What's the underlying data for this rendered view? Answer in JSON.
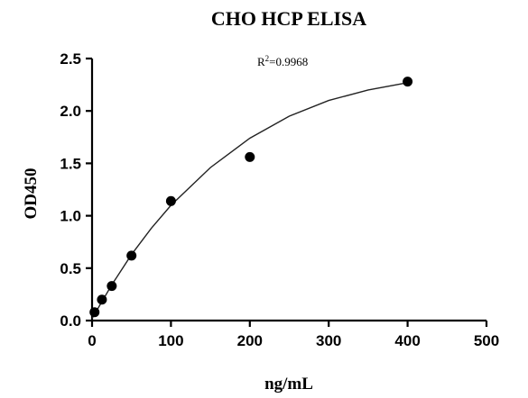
{
  "chart_data": {
    "type": "scatter",
    "title": "CHO HCP ELISA",
    "xlabel": "ng/mL",
    "ylabel": "OD450",
    "xlim": [
      0,
      500
    ],
    "ylim": [
      0,
      2.5
    ],
    "x_ticks": [
      "0",
      "100",
      "200",
      "300",
      "400",
      "500"
    ],
    "y_ticks": [
      "0.0",
      "0.5",
      "1.0",
      "1.5",
      "2.0",
      "2.5"
    ],
    "x_tick_values": [
      0,
      100,
      200,
      300,
      400,
      500
    ],
    "y_tick_values": [
      0,
      0.5,
      1.0,
      1.5,
      2.0,
      2.5
    ],
    "grid": false,
    "annotation": {
      "base": "R",
      "sup": "2",
      "rest": "=0.9968"
    },
    "series": [
      {
        "x": [
          3.125,
          12.5,
          25,
          50,
          100,
          200,
          400
        ],
        "y": [
          0.08,
          0.2,
          0.33,
          0.62,
          1.14,
          1.56,
          2.28
        ]
      }
    ],
    "fit_curve": {
      "x": [
        0,
        25,
        50,
        75,
        100,
        150,
        200,
        250,
        300,
        350,
        400
      ],
      "y": [
        0.02,
        0.34,
        0.63,
        0.88,
        1.1,
        1.46,
        1.74,
        1.95,
        2.1,
        2.2,
        2.27
      ]
    }
  }
}
